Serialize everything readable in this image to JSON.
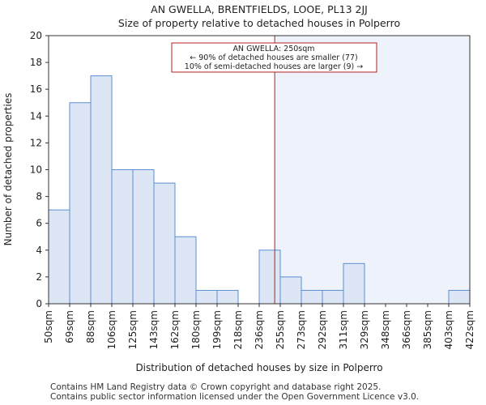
{
  "chart_data": {
    "type": "bar",
    "title_line1": "AN GWELLA, BRENTFIELDS, LOOE, PL13 2JJ",
    "title_line2": "Size of property relative to detached houses in Polperro",
    "xlabel": "Distribution of detached houses by size in Polperro",
    "ylabel": "Number of detached properties",
    "ylim": [
      0,
      20
    ],
    "yticks": [
      0,
      2,
      4,
      6,
      8,
      10,
      12,
      14,
      16,
      18,
      20
    ],
    "bin_labels": [
      "50sqm",
      "69sqm",
      "88sqm",
      "106sqm",
      "125sqm",
      "143sqm",
      "162sqm",
      "180sqm",
      "199sqm",
      "218sqm",
      "236sqm",
      "255sqm",
      "273sqm",
      "292sqm",
      "311sqm",
      "329sqm",
      "348sqm",
      "366sqm",
      "385sqm",
      "403sqm",
      "422sqm"
    ],
    "values": [
      7,
      15,
      17,
      10,
      10,
      9,
      5,
      1,
      1,
      0,
      4,
      2,
      1,
      1,
      3,
      0,
      0,
      0,
      0,
      1
    ],
    "marker_value": 250,
    "annotation": {
      "line1": "AN GWELLA: 250sqm",
      "line2": "← 90% of detached houses are smaller (77)",
      "line3": "10% of semi-detached houses are larger (9) →"
    },
    "colors": {
      "bar_fill": "#dce6f5",
      "bar_stroke": "#5b8fd1",
      "marker": "#b22222",
      "shade": "#eef2fb"
    },
    "grid": false,
    "legend": "none"
  },
  "footer": {
    "line1": "Contains HM Land Registry data © Crown copyright and database right 2025.",
    "line2": "Contains public sector information licensed under the Open Government Licence v3.0."
  }
}
